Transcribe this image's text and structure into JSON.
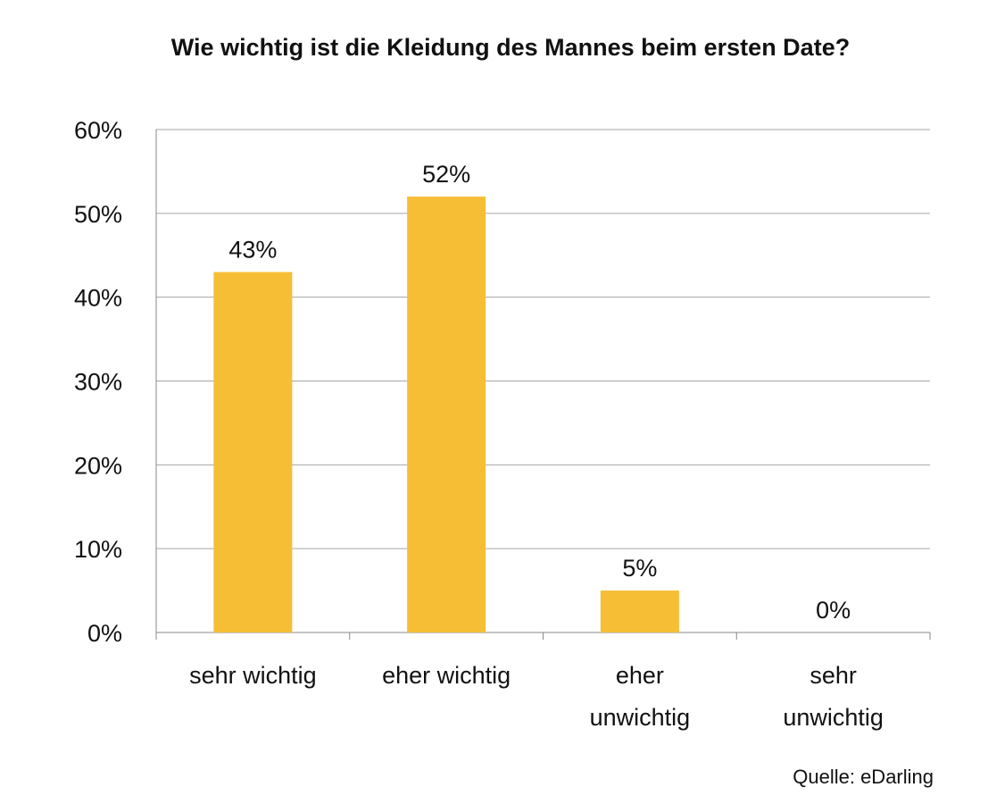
{
  "chart_data": {
    "type": "bar",
    "title": "Wie wichtig ist die Kleidung des Mannes beim ersten Date?",
    "categories": [
      [
        "sehr wichtig"
      ],
      [
        "eher wichtig"
      ],
      [
        "eher",
        "unwichtig"
      ],
      [
        "sehr",
        "unwichtig"
      ]
    ],
    "values": [
      43,
      52,
      5,
      0
    ],
    "data_labels": [
      "43%",
      "52%",
      "5%",
      "0%"
    ],
    "yticks": [
      "0%",
      "10%",
      "20%",
      "30%",
      "40%",
      "50%",
      "60%"
    ],
    "ylim": [
      0,
      60
    ],
    "grid": true,
    "bar_color": "#F5BE35",
    "source": "Quelle: eDarling"
  }
}
